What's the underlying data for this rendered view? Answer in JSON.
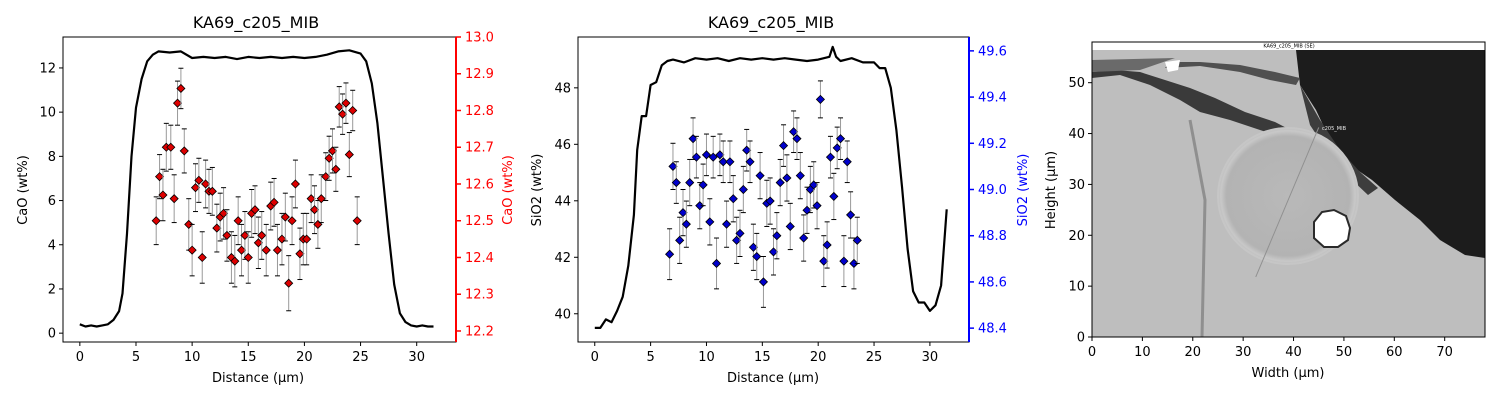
{
  "chart_data": [
    {
      "type": "line+scatter",
      "title": "KA69_c205_MIB",
      "xlabel": "Distance (µm)",
      "ylabel_left": "CaO (wt%)",
      "ylabel_right": "CaO (wt%)",
      "right_color": "#ff0000",
      "marker_color": "#dd0000",
      "xlim": [
        -1.5,
        33.5
      ],
      "ylim_left": [
        -0.4,
        13.4
      ],
      "ylim_right": [
        12.17,
        13.0
      ],
      "xticks": [
        0,
        5,
        10,
        15,
        20,
        25,
        30
      ],
      "yticks_left": [
        0,
        2,
        4,
        6,
        8,
        10,
        12
      ],
      "yticks_right": [
        12.2,
        12.3,
        12.4,
        12.5,
        12.6,
        12.7,
        12.8,
        12.9,
        13.0
      ],
      "line": {
        "x": [
          0,
          0.5,
          1,
          1.5,
          2,
          2.5,
          3,
          3.5,
          3.8,
          4.2,
          4.6,
          5,
          5.5,
          6,
          6.5,
          7,
          8,
          9,
          10,
          11,
          12,
          13,
          14,
          15,
          16,
          17,
          18,
          19,
          20,
          21,
          22,
          23,
          24,
          25,
          25.5,
          26,
          26.5,
          27,
          27.5,
          28,
          28.5,
          29,
          29.5,
          30,
          30.5,
          31,
          31.5
        ],
        "y": [
          0.4,
          0.3,
          0.35,
          0.3,
          0.35,
          0.4,
          0.6,
          1.0,
          1.8,
          4.5,
          8.0,
          10.2,
          11.5,
          12.3,
          12.6,
          12.75,
          12.7,
          12.75,
          12.45,
          12.5,
          12.45,
          12.5,
          12.4,
          12.5,
          12.45,
          12.5,
          12.45,
          12.5,
          12.45,
          12.5,
          12.6,
          12.75,
          12.8,
          12.65,
          12.3,
          11.3,
          9.5,
          7.0,
          4.5,
          2.2,
          0.9,
          0.5,
          0.35,
          0.3,
          0.35,
          0.3,
          0.3
        ]
      },
      "points": [
        {
          "x": 6.8,
          "y": 12.5,
          "err": 0.065
        },
        {
          "x": 7.1,
          "y": 12.62,
          "err": 0.06
        },
        {
          "x": 7.4,
          "y": 12.57,
          "err": 0.07
        },
        {
          "x": 7.7,
          "y": 12.7,
          "err": 0.065
        },
        {
          "x": 8.1,
          "y": 12.7,
          "err": 0.06
        },
        {
          "x": 8.4,
          "y": 12.56,
          "err": 0.065
        },
        {
          "x": 8.7,
          "y": 12.82,
          "err": 0.06
        },
        {
          "x": 9.0,
          "y": 12.86,
          "err": 0.055
        },
        {
          "x": 9.3,
          "y": 12.69,
          "err": 0.06
        },
        {
          "x": 9.7,
          "y": 12.49,
          "err": 0.07
        },
        {
          "x": 10.0,
          "y": 12.42,
          "err": 0.07
        },
        {
          "x": 10.3,
          "y": 12.59,
          "err": 0.065
        },
        {
          "x": 10.6,
          "y": 12.61,
          "err": 0.06
        },
        {
          "x": 10.9,
          "y": 12.4,
          "err": 0.07
        },
        {
          "x": 11.2,
          "y": 12.6,
          "err": 0.065
        },
        {
          "x": 11.5,
          "y": 12.58,
          "err": 0.06
        },
        {
          "x": 11.8,
          "y": 12.58,
          "err": 0.065
        },
        {
          "x": 12.2,
          "y": 12.48,
          "err": 0.065
        },
        {
          "x": 12.5,
          "y": 12.51,
          "err": 0.065
        },
        {
          "x": 12.8,
          "y": 12.52,
          "err": 0.07
        },
        {
          "x": 13.1,
          "y": 12.46,
          "err": 0.07
        },
        {
          "x": 13.5,
          "y": 12.4,
          "err": 0.07
        },
        {
          "x": 13.8,
          "y": 12.39,
          "err": 0.07
        },
        {
          "x": 14.1,
          "y": 12.5,
          "err": 0.065
        },
        {
          "x": 14.4,
          "y": 12.42,
          "err": 0.07
        },
        {
          "x": 14.7,
          "y": 12.46,
          "err": 0.065
        },
        {
          "x": 15.0,
          "y": 12.4,
          "err": 0.07
        },
        {
          "x": 15.3,
          "y": 12.52,
          "err": 0.065
        },
        {
          "x": 15.6,
          "y": 12.53,
          "err": 0.065
        },
        {
          "x": 15.9,
          "y": 12.44,
          "err": 0.07
        },
        {
          "x": 16.2,
          "y": 12.46,
          "err": 0.065
        },
        {
          "x": 16.6,
          "y": 12.42,
          "err": 0.07
        },
        {
          "x": 17.0,
          "y": 12.54,
          "err": 0.065
        },
        {
          "x": 17.3,
          "y": 12.55,
          "err": 0.065
        },
        {
          "x": 17.6,
          "y": 12.42,
          "err": 0.07
        },
        {
          "x": 18.0,
          "y": 12.45,
          "err": 0.07
        },
        {
          "x": 18.3,
          "y": 12.51,
          "err": 0.065
        },
        {
          "x": 18.6,
          "y": 12.33,
          "err": 0.075
        },
        {
          "x": 18.9,
          "y": 12.5,
          "err": 0.065
        },
        {
          "x": 19.2,
          "y": 12.6,
          "err": 0.065
        },
        {
          "x": 19.6,
          "y": 12.41,
          "err": 0.07
        },
        {
          "x": 19.9,
          "y": 12.45,
          "err": 0.07
        },
        {
          "x": 20.2,
          "y": 12.45,
          "err": 0.07
        },
        {
          "x": 20.6,
          "y": 12.56,
          "err": 0.065
        },
        {
          "x": 20.9,
          "y": 12.53,
          "err": 0.065
        },
        {
          "x": 21.2,
          "y": 12.49,
          "err": 0.065
        },
        {
          "x": 21.5,
          "y": 12.56,
          "err": 0.065
        },
        {
          "x": 21.9,
          "y": 12.62,
          "err": 0.065
        },
        {
          "x": 22.2,
          "y": 12.67,
          "err": 0.06
        },
        {
          "x": 22.5,
          "y": 12.69,
          "err": 0.06
        },
        {
          "x": 22.8,
          "y": 12.64,
          "err": 0.06
        },
        {
          "x": 23.1,
          "y": 12.81,
          "err": 0.055
        },
        {
          "x": 23.4,
          "y": 12.79,
          "err": 0.055
        },
        {
          "x": 23.7,
          "y": 12.82,
          "err": 0.055
        },
        {
          "x": 24.0,
          "y": 12.68,
          "err": 0.06
        },
        {
          "x": 24.3,
          "y": 12.8,
          "err": 0.055
        },
        {
          "x": 24.7,
          "y": 12.5,
          "err": 0.065
        }
      ]
    },
    {
      "type": "line+scatter",
      "title": "KA69_c205_MIB",
      "xlabel": "Distance (µm)",
      "ylabel_left": "SiO2 (wt%)",
      "ylabel_right": "SiO2 (wt%)",
      "right_color": "#0000ff",
      "marker_color": "#0000cc",
      "xlim": [
        -1.5,
        33.5
      ],
      "ylim_left": [
        39.0,
        49.8
      ],
      "ylim_right": [
        48.34,
        49.66
      ],
      "xticks": [
        0,
        5,
        10,
        15,
        20,
        25,
        30
      ],
      "yticks_left": [
        40,
        42,
        44,
        46,
        48
      ],
      "yticks_right": [
        48.4,
        48.6,
        48.8,
        49.0,
        49.2,
        49.4,
        49.6
      ],
      "line": {
        "x": [
          0,
          0.5,
          1,
          1.5,
          2,
          2.5,
          3,
          3.5,
          3.8,
          4.2,
          4.6,
          5,
          5.5,
          6,
          6.5,
          7,
          8,
          9,
          10,
          11,
          12,
          13,
          14,
          15,
          16,
          17,
          18,
          19,
          20,
          21,
          21.3,
          21.6,
          22,
          23,
          24,
          25,
          25.5,
          26,
          26.5,
          27,
          27.5,
          28,
          28.5,
          29,
          29.5,
          30,
          30.5,
          31,
          31.5
        ],
        "y": [
          39.5,
          39.5,
          39.8,
          39.7,
          40.1,
          40.6,
          41.7,
          43.5,
          45.8,
          47.0,
          47.0,
          48.1,
          48.2,
          48.8,
          48.95,
          49.0,
          48.9,
          49.05,
          49.0,
          49.05,
          48.95,
          49.05,
          49.0,
          49.05,
          49.0,
          49.05,
          49.0,
          48.95,
          49.0,
          49.1,
          49.45,
          49.1,
          48.95,
          49.05,
          48.9,
          48.9,
          48.7,
          48.7,
          48.0,
          46.5,
          44.5,
          42.3,
          40.8,
          40.4,
          40.4,
          40.1,
          40.3,
          41.0,
          43.7
        ]
      },
      "points": [
        {
          "x": 6.7,
          "y": 48.72,
          "err": 0.11
        },
        {
          "x": 7.0,
          "y": 49.1,
          "err": 0.1
        },
        {
          "x": 7.3,
          "y": 49.03,
          "err": 0.09
        },
        {
          "x": 7.6,
          "y": 48.78,
          "err": 0.1
        },
        {
          "x": 7.9,
          "y": 48.9,
          "err": 0.1
        },
        {
          "x": 8.2,
          "y": 48.85,
          "err": 0.1
        },
        {
          "x": 8.5,
          "y": 49.03,
          "err": 0.1
        },
        {
          "x": 8.8,
          "y": 49.22,
          "err": 0.09
        },
        {
          "x": 9.1,
          "y": 49.14,
          "err": 0.09
        },
        {
          "x": 9.4,
          "y": 48.93,
          "err": 0.1
        },
        {
          "x": 9.7,
          "y": 49.02,
          "err": 0.09
        },
        {
          "x": 10.0,
          "y": 49.15,
          "err": 0.09
        },
        {
          "x": 10.3,
          "y": 48.86,
          "err": 0.1
        },
        {
          "x": 10.6,
          "y": 49.14,
          "err": 0.09
        },
        {
          "x": 10.9,
          "y": 48.68,
          "err": 0.11
        },
        {
          "x": 11.2,
          "y": 49.15,
          "err": 0.09
        },
        {
          "x": 11.5,
          "y": 49.12,
          "err": 0.09
        },
        {
          "x": 11.8,
          "y": 48.85,
          "err": 0.1
        },
        {
          "x": 12.1,
          "y": 49.12,
          "err": 0.09
        },
        {
          "x": 12.4,
          "y": 48.96,
          "err": 0.1
        },
        {
          "x": 12.7,
          "y": 48.78,
          "err": 0.1
        },
        {
          "x": 13.0,
          "y": 48.81,
          "err": 0.1
        },
        {
          "x": 13.3,
          "y": 49.0,
          "err": 0.1
        },
        {
          "x": 13.6,
          "y": 49.17,
          "err": 0.09
        },
        {
          "x": 13.9,
          "y": 49.12,
          "err": 0.09
        },
        {
          "x": 14.2,
          "y": 48.75,
          "err": 0.1
        },
        {
          "x": 14.5,
          "y": 48.71,
          "err": 0.1
        },
        {
          "x": 14.8,
          "y": 49.06,
          "err": 0.1
        },
        {
          "x": 15.1,
          "y": 48.6,
          "err": 0.11
        },
        {
          "x": 15.4,
          "y": 48.94,
          "err": 0.1
        },
        {
          "x": 15.7,
          "y": 48.95,
          "err": 0.1
        },
        {
          "x": 16.0,
          "y": 48.73,
          "err": 0.1
        },
        {
          "x": 16.3,
          "y": 48.8,
          "err": 0.1
        },
        {
          "x": 16.6,
          "y": 49.03,
          "err": 0.1
        },
        {
          "x": 16.9,
          "y": 49.19,
          "err": 0.09
        },
        {
          "x": 17.2,
          "y": 49.05,
          "err": 0.1
        },
        {
          "x": 17.5,
          "y": 48.84,
          "err": 0.1
        },
        {
          "x": 17.8,
          "y": 49.25,
          "err": 0.09
        },
        {
          "x": 18.1,
          "y": 49.22,
          "err": 0.09
        },
        {
          "x": 18.4,
          "y": 49.06,
          "err": 0.1
        },
        {
          "x": 18.7,
          "y": 48.79,
          "err": 0.1
        },
        {
          "x": 19.0,
          "y": 48.91,
          "err": 0.1
        },
        {
          "x": 19.3,
          "y": 49.0,
          "err": 0.1
        },
        {
          "x": 19.6,
          "y": 49.02,
          "err": 0.1
        },
        {
          "x": 19.9,
          "y": 48.93,
          "err": 0.1
        },
        {
          "x": 20.2,
          "y": 49.39,
          "err": 0.08
        },
        {
          "x": 20.5,
          "y": 48.69,
          "err": 0.11
        },
        {
          "x": 20.8,
          "y": 48.76,
          "err": 0.1
        },
        {
          "x": 21.1,
          "y": 49.14,
          "err": 0.09
        },
        {
          "x": 21.4,
          "y": 48.97,
          "err": 0.1
        },
        {
          "x": 21.7,
          "y": 49.18,
          "err": 0.09
        },
        {
          "x": 22.0,
          "y": 49.22,
          "err": 0.09
        },
        {
          "x": 22.3,
          "y": 48.69,
          "err": 0.11
        },
        {
          "x": 22.6,
          "y": 49.12,
          "err": 0.09
        },
        {
          "x": 22.9,
          "y": 48.89,
          "err": 0.1
        },
        {
          "x": 23.2,
          "y": 48.68,
          "err": 0.11
        },
        {
          "x": 23.5,
          "y": 48.78,
          "err": 0.1
        }
      ]
    },
    {
      "type": "image",
      "caption": "KA69_c205_MIB (SE)",
      "spot_label": "c205_MIB",
      "xlabel": "Width (µm)",
      "ylabel": "Height (µm)",
      "xlim": [
        0,
        78
      ],
      "ylim": [
        0,
        58
      ],
      "xticks": [
        0,
        10,
        20,
        30,
        40,
        50,
        60,
        70
      ],
      "yticks": [
        0,
        10,
        20,
        30,
        40,
        50
      ],
      "profile_line": {
        "x": [
          32.5,
          45.0
        ],
        "y": [
          11.8,
          41.2
        ]
      }
    }
  ]
}
